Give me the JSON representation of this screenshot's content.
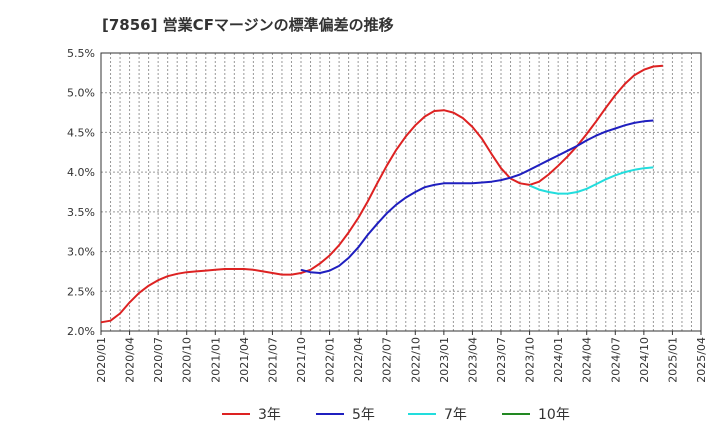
{
  "title": "[7856]  営業CFマージンの標準偏差の推移",
  "chart_data": {
    "type": "line",
    "ylim": [
      2.0,
      5.5
    ],
    "y_ticks": [
      "5.5%",
      "5.0%",
      "4.5%",
      "4.0%",
      "3.5%",
      "3.0%",
      "2.5%",
      "2.0%"
    ],
    "y_tick_values": [
      5.5,
      5.0,
      4.5,
      4.0,
      3.5,
      3.0,
      2.5,
      2.0
    ],
    "x_ticks": [
      "2020/01",
      "2020/04",
      "2020/07",
      "2020/10",
      "2021/01",
      "2021/04",
      "2021/07",
      "2021/10",
      "2022/01",
      "2022/04",
      "2022/07",
      "2022/10",
      "2023/01",
      "2023/04",
      "2023/07",
      "2023/10",
      "2024/01",
      "2024/04",
      "2024/07",
      "2024/10",
      "2025/01",
      "2025/04"
    ],
    "grid": true,
    "legend_position": "bottom",
    "series": [
      {
        "name": "3年",
        "color": "#dd2222",
        "start_month_index": 0,
        "values": [
          2.11,
          2.13,
          2.22,
          2.36,
          2.48,
          2.57,
          2.64,
          2.69,
          2.72,
          2.74,
          2.75,
          2.76,
          2.77,
          2.78,
          2.78,
          2.78,
          2.77,
          2.75,
          2.73,
          2.71,
          2.71,
          2.73,
          2.77,
          2.85,
          2.95,
          3.08,
          3.24,
          3.42,
          3.63,
          3.86,
          4.08,
          4.28,
          4.45,
          4.59,
          4.7,
          4.77,
          4.78,
          4.75,
          4.68,
          4.57,
          4.42,
          4.23,
          4.05,
          3.92,
          3.86,
          3.84,
          3.88,
          3.97,
          4.08,
          4.2,
          4.33,
          4.48,
          4.64,
          4.81,
          4.97,
          5.11,
          5.22,
          5.29,
          5.33,
          5.34
        ]
      },
      {
        "name": "5年",
        "color": "#1f1fbf",
        "start_month_index": 21,
        "values": [
          2.77,
          2.74,
          2.73,
          2.76,
          2.82,
          2.92,
          3.05,
          3.21,
          3.35,
          3.48,
          3.59,
          3.68,
          3.75,
          3.81,
          3.84,
          3.86,
          3.86,
          3.86,
          3.86,
          3.87,
          3.88,
          3.9,
          3.93,
          3.97,
          4.03,
          4.09,
          4.15,
          4.21,
          4.27,
          4.33,
          4.4,
          4.46,
          4.51,
          4.55,
          4.59,
          4.62,
          4.64,
          4.65
        ]
      },
      {
        "name": "7年",
        "color": "#22dddd",
        "start_month_index": 45,
        "values": [
          3.83,
          3.78,
          3.75,
          3.73,
          3.73,
          3.75,
          3.79,
          3.85,
          3.91,
          3.96,
          4.0,
          4.03,
          4.05,
          4.06
        ]
      },
      {
        "name": "10年",
        "color": "#228822",
        "start_month_index": 0,
        "values": []
      }
    ]
  }
}
